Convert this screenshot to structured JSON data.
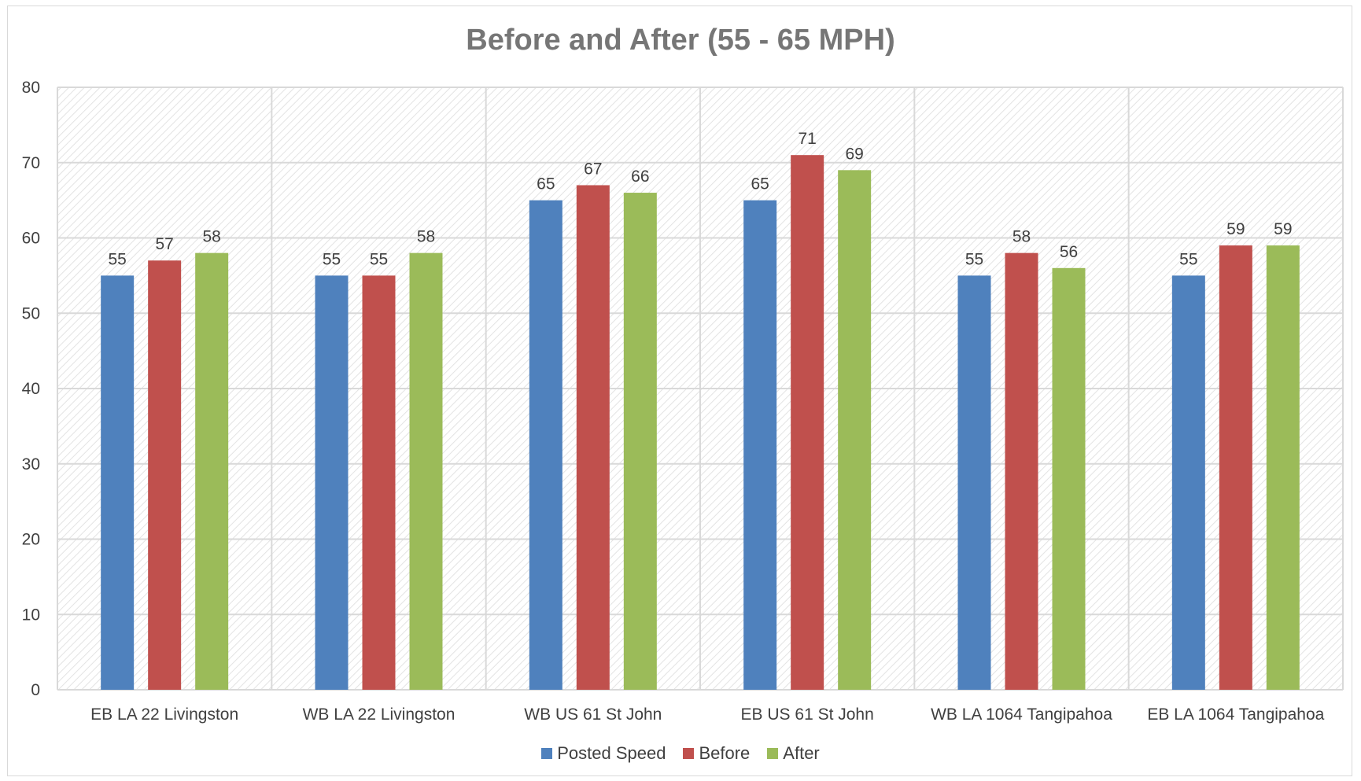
{
  "chart_data": {
    "type": "bar",
    "title": "Before and After (55 - 65 MPH)",
    "xlabel": "",
    "ylabel": "",
    "ylim": [
      0,
      80
    ],
    "yticks": [
      0,
      10,
      20,
      30,
      40,
      50,
      60,
      70,
      80
    ],
    "grid": true,
    "legend_position": "bottom",
    "categories": [
      "EB LA 22 Livingston",
      "WB LA 22 Livingston",
      "WB US 61 St John",
      "EB US 61 St John",
      "WB LA 1064 Tangipahoa",
      "EB LA 1064 Tangipahoa"
    ],
    "series": [
      {
        "name": "Posted Speed",
        "color": "#4f81bd",
        "values": [
          55,
          55,
          65,
          65,
          55,
          55
        ]
      },
      {
        "name": "Before",
        "color": "#c0504d",
        "values": [
          57,
          55,
          67,
          71,
          58,
          59
        ]
      },
      {
        "name": "After",
        "color": "#9bbb59",
        "values": [
          58,
          58,
          66,
          69,
          56,
          59
        ]
      }
    ]
  }
}
